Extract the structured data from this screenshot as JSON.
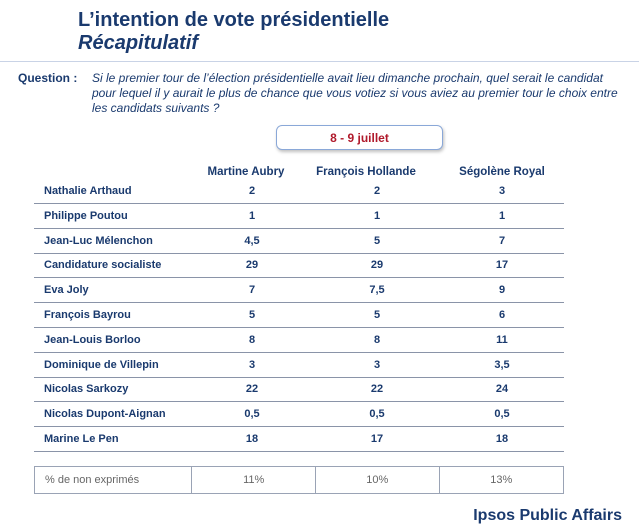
{
  "header": {
    "title": "L’intention de vote présidentielle",
    "subtitle": "Récapitulatif"
  },
  "question": {
    "label": "Question :",
    "text": "Si le premier tour de l’élection présidentielle avait lieu dimanche prochain, quel serait le candidat pour lequel il y aurait le plus de chance que vous votiez si vous aviez au premier tour le choix entre les candidats suivants ?"
  },
  "date_label": "8 - 9  juillet",
  "columns": [
    "Martine Aubry",
    "François Hollande",
    "Ségolène Royal"
  ],
  "rows": [
    {
      "name": "Nathalie Arthaud",
      "values": [
        "2",
        "2",
        "3"
      ]
    },
    {
      "name": "Philippe Poutou",
      "values": [
        "1",
        "1",
        "1"
      ]
    },
    {
      "name": "Jean-Luc Mélenchon",
      "values": [
        "4,5",
        "5",
        "7"
      ]
    },
    {
      "name": "Candidature socialiste",
      "values": [
        "29",
        "29",
        "17"
      ]
    },
    {
      "name": "Eva Joly",
      "values": [
        "7",
        "7,5",
        "9"
      ]
    },
    {
      "name": "François Bayrou",
      "values": [
        "5",
        "5",
        "6"
      ]
    },
    {
      "name": "Jean-Louis Borloo",
      "values": [
        "8",
        "8",
        "11"
      ]
    },
    {
      "name": "Dominique de Villepin",
      "values": [
        "3",
        "3",
        "3,5"
      ]
    },
    {
      "name": "Nicolas Sarkozy",
      "values": [
        "22",
        "22",
        "24"
      ]
    },
    {
      "name": "Nicolas Dupont-Aignan",
      "values": [
        "0,5",
        "0,5",
        "0,5"
      ]
    },
    {
      "name": "Marine Le Pen",
      "values": [
        "18",
        "17",
        "18"
      ]
    }
  ],
  "footer": {
    "label": "% de non exprimés",
    "values": [
      "11%",
      "10%",
      "13%"
    ]
  },
  "brand": "Ipsos Public Affairs"
}
